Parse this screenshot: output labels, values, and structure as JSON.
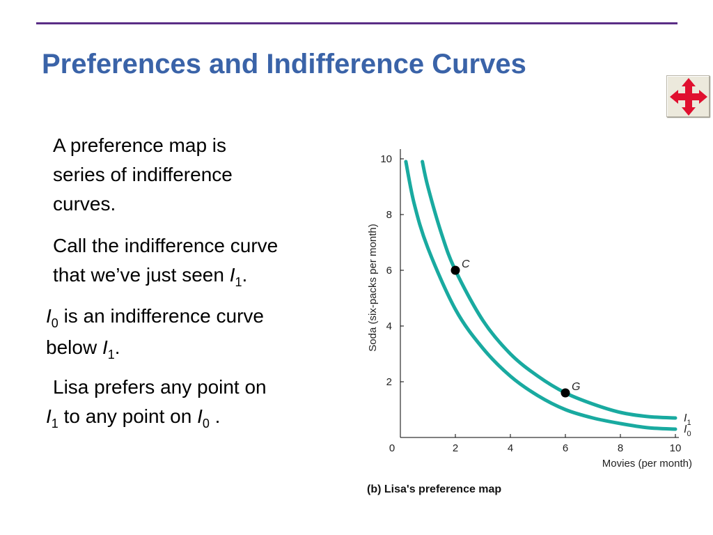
{
  "slide": {
    "title": "Preferences and Indifference Curves",
    "accent_color": "#3a63a8",
    "rule_color": "#5a2d86"
  },
  "nav_button": {
    "icon": "four-way-arrows-icon",
    "color": "#e0102f"
  },
  "paragraphs": {
    "p1": {
      "line1": "A preference map is",
      "line2": "series of indifference",
      "line3": "curves."
    },
    "p2": {
      "line1": "Call the indifference curve",
      "line2_text": "that we’ve just seen ",
      "line2_var": "I",
      "line2_sub": "1",
      "line2_end": "."
    },
    "p3": {
      "var": "I",
      "sub": "0",
      "line1_text": " is an indifference curve",
      "line2_text": "below ",
      "line2_var": "I",
      "line2_sub": "1",
      "line2_end": "."
    },
    "p4": {
      "line1": "Lisa prefers any point on",
      "var1": "I",
      "sub1": "1",
      "mid": " to any point on ",
      "var2": "I",
      "sub2": "0",
      "end": " ."
    }
  },
  "chart_data": {
    "type": "line",
    "caption": "(b) Lisa's preference map",
    "xlabel": "Movies (per month)",
    "ylabel": "Soda (six-packs per month)",
    "xlim": [
      0,
      10
    ],
    "ylim": [
      0,
      10
    ],
    "x_ticks": [
      "0",
      "2",
      "4",
      "6",
      "8",
      "10"
    ],
    "y_ticks": [
      "2",
      "4",
      "6",
      "8",
      "10"
    ],
    "line_color": "#19aaa0",
    "series": [
      {
        "name": "I1",
        "label_var": "I",
        "label_sub": "1",
        "points": [
          [
            0.8,
            9.9
          ],
          [
            1.0,
            9.0
          ],
          [
            1.5,
            7.3
          ],
          [
            2.0,
            6.0
          ],
          [
            3.0,
            4.2
          ],
          [
            4.0,
            3.0
          ],
          [
            5.0,
            2.2
          ],
          [
            6.0,
            1.6
          ],
          [
            7.0,
            1.2
          ],
          [
            8.0,
            0.9
          ],
          [
            9.0,
            0.75
          ],
          [
            10.0,
            0.7
          ]
        ]
      },
      {
        "name": "I0",
        "label_var": "I",
        "label_sub": "0",
        "points": [
          [
            0.2,
            9.9
          ],
          [
            0.5,
            8.4
          ],
          [
            1.0,
            6.8
          ],
          [
            2.0,
            4.6
          ],
          [
            3.0,
            3.2
          ],
          [
            4.0,
            2.2
          ],
          [
            5.0,
            1.5
          ],
          [
            6.0,
            1.0
          ],
          [
            7.0,
            0.7
          ],
          [
            8.0,
            0.5
          ],
          [
            9.0,
            0.35
          ],
          [
            10.0,
            0.3
          ]
        ]
      }
    ],
    "points": [
      {
        "label": "C",
        "x": 2,
        "y": 6
      },
      {
        "label": "G",
        "x": 6,
        "y": 1.6
      }
    ]
  }
}
